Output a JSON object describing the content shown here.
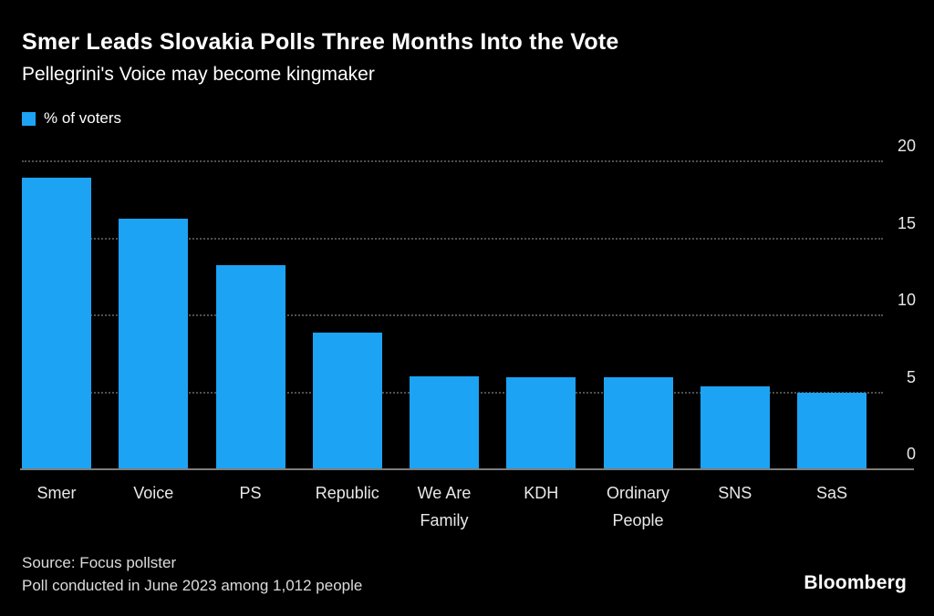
{
  "header": {
    "title": "Smer Leads Slovakia Polls Three Months Into the Vote",
    "subtitle": "Pellegrini's Voice may become kingmaker"
  },
  "legend": {
    "label": "% of voters"
  },
  "chart_data": {
    "type": "bar",
    "categories": [
      "Smer",
      "Voice",
      "PS",
      "Republic",
      "We Are Family",
      "KDH",
      "Ordinary People",
      "SNS",
      "SaS"
    ],
    "values": [
      18.9,
      16.2,
      13.2,
      8.8,
      6.0,
      5.9,
      5.9,
      5.3,
      4.9
    ],
    "title": "Smer Leads Slovakia Polls Three Months Into the Vote",
    "subtitle": "Pellegrini's Voice may become kingmaker",
    "xlabel": "",
    "ylabel": "% of voters",
    "ylim": [
      0,
      20
    ],
    "yticks": [
      0,
      5,
      10,
      15,
      20
    ],
    "grid": "horizontal dotted, axis labels on right",
    "legend_position": "top-left",
    "bar_color": "#1CA3F4"
  },
  "footer": {
    "source": "Source: Focus pollster",
    "note": "Poll conducted in June 2023 among 1,012 people",
    "brand": "Bloomberg"
  },
  "colors": {
    "background": "#000000",
    "bar": "#1CA3F4",
    "text": "#FFFFFF",
    "grid": "#4F4F4F",
    "axis": "#7D7D7D"
  }
}
